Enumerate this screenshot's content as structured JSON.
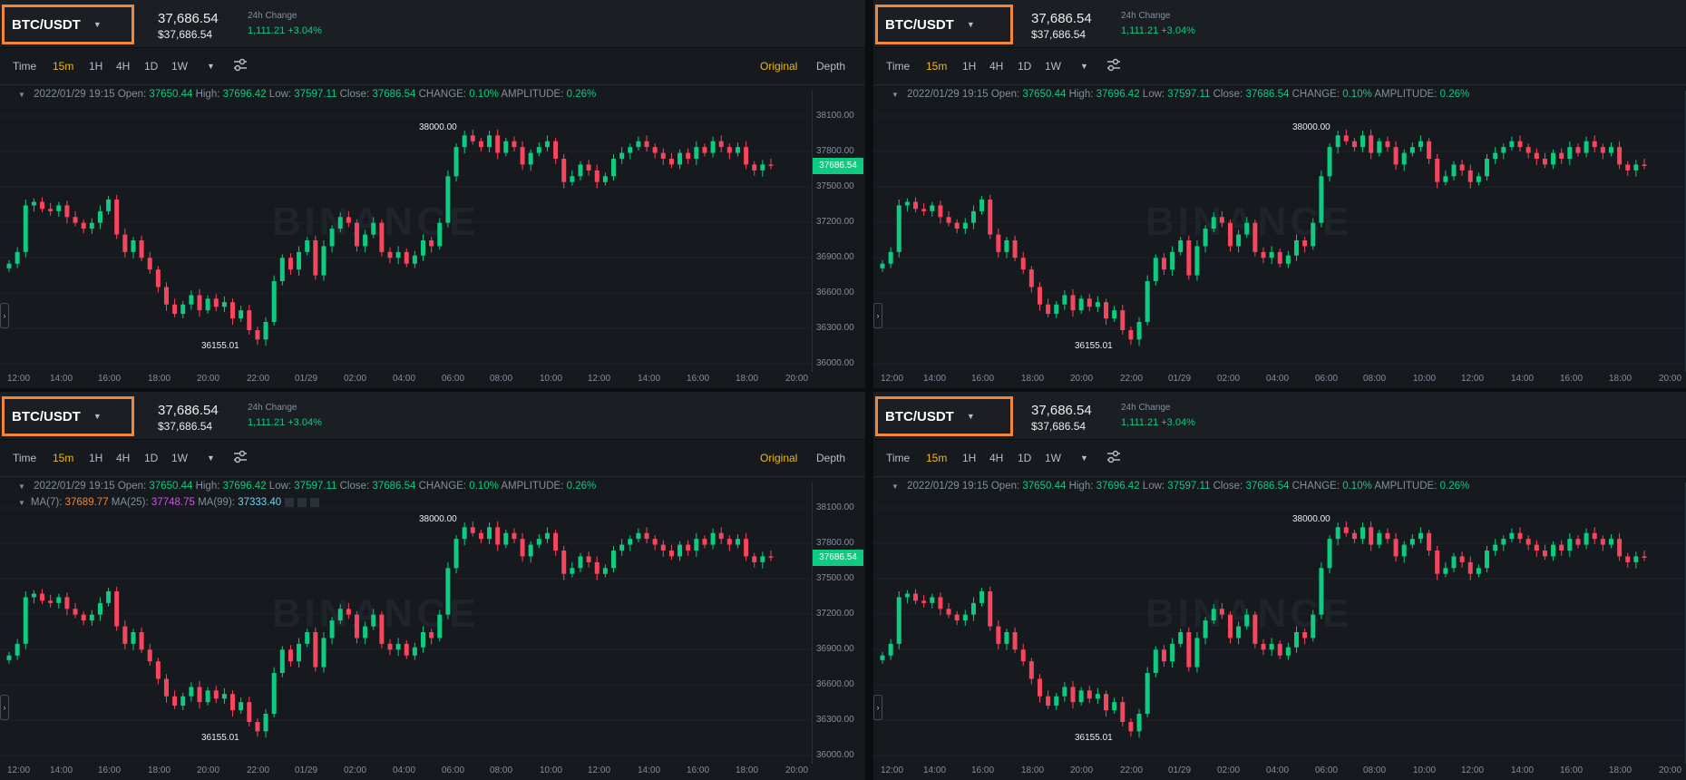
{
  "pair": "BTC/USDT",
  "price": "37,686.54",
  "price_usd": "$37,686.54",
  "change_label": "24h Change",
  "change_value": "1,111.21 +3.04%",
  "toolbar": {
    "time": "Time",
    "intervals": [
      "15m",
      "1H",
      "4H",
      "1D",
      "1W"
    ],
    "active_interval": "15m",
    "original": "Original",
    "depth": "Depth"
  },
  "ohlc": {
    "date": "2022/01/29 19:15",
    "open_label": "Open:",
    "open": "37650.44",
    "high_label": "High:",
    "high": "37696.42",
    "low_label": "Low:",
    "low": "37597.11",
    "close_label": "Close:",
    "close": "37686.54",
    "change_label": "CHANGE:",
    "change": "0.10%",
    "amp_label": "AMPLITUDE:",
    "amp": "0.26%"
  },
  "ma": {
    "ma7_label": "MA(7):",
    "ma7": "37689.77",
    "ma25_label": "MA(25):",
    "ma25": "37748.75",
    "ma99_label": "MA(99):",
    "ma99": "37333.40"
  },
  "y_ticks": [
    "38100.00",
    "37800.00",
    "37500.00",
    "37200.00",
    "36900.00",
    "36600.00",
    "36300.00",
    "36000.00"
  ],
  "x_ticks": [
    "12:00",
    "14:00",
    "16:00",
    "18:00",
    "20:00",
    "22:00",
    "01/29",
    "02:00",
    "04:00",
    "06:00",
    "08:00",
    "10:00",
    "12:00",
    "14:00",
    "16:00",
    "18:00",
    "20:00"
  ],
  "high_marker": "38000.00",
  "low_marker": "36155.01",
  "last_price_label": "37686.54",
  "watermark": "BINANCE",
  "colors": {
    "up": "#0ecb81",
    "down": "#f6465d",
    "accent": "#f0b90b",
    "highlight": "#f0873a"
  },
  "chart_data": {
    "type": "candlestick",
    "y_range": [
      36000,
      38100
    ],
    "closes": [
      36850,
      36950,
      37350,
      37380,
      37320,
      37300,
      37350,
      37250,
      37200,
      37150,
      37200,
      37300,
      37400,
      37100,
      36950,
      37050,
      36900,
      36800,
      36650,
      36500,
      36420,
      36500,
      36580,
      36450,
      36550,
      36480,
      36520,
      36380,
      36450,
      36280,
      36200,
      36350,
      36700,
      36900,
      36800,
      36950,
      37050,
      36750,
      37000,
      37150,
      37250,
      37200,
      37000,
      37100,
      37200,
      36950,
      36900,
      36950,
      36850,
      36920,
      37050,
      37000,
      37200,
      37600,
      37850,
      37950,
      37900,
      37850,
      37950,
      37800,
      37900,
      37850,
      37700,
      37800,
      37850,
      37900,
      37750,
      37550,
      37600,
      37700,
      37650,
      37550,
      37600,
      37750,
      37800,
      37850,
      37900,
      37850,
      37800,
      37750,
      37700,
      37800,
      37750,
      37850,
      37800,
      37900,
      37850,
      37800,
      37850,
      37700,
      37650,
      37700,
      37690
    ]
  }
}
